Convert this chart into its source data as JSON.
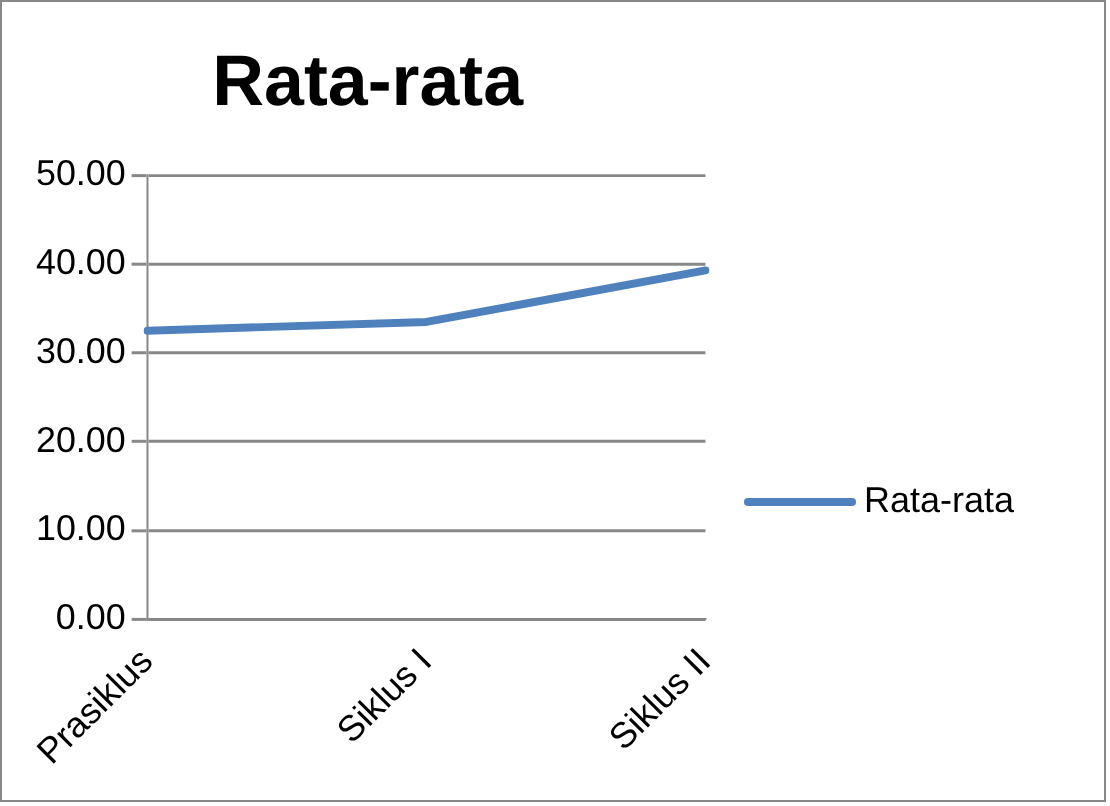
{
  "chart_data": {
    "type": "line",
    "title": "Rata-rata",
    "categories": [
      "Prasiklus",
      "Siklus I",
      "Siklus II"
    ],
    "series": [
      {
        "name": "Rata-rata",
        "color": "#4f81bd",
        "values": [
          32.5,
          33.5,
          39.3
        ]
      }
    ],
    "ylim": [
      0,
      50
    ],
    "yticks": [
      {
        "value": 0,
        "label": "0.00"
      },
      {
        "value": 10,
        "label": "10.00"
      },
      {
        "value": 20,
        "label": "20.00"
      },
      {
        "value": 30,
        "label": "30.00"
      },
      {
        "value": 40,
        "label": "40.00"
      },
      {
        "value": 50,
        "label": "50.00"
      }
    ],
    "grid": "y",
    "legend": "right",
    "marker": "none",
    "line_style": "solid"
  }
}
